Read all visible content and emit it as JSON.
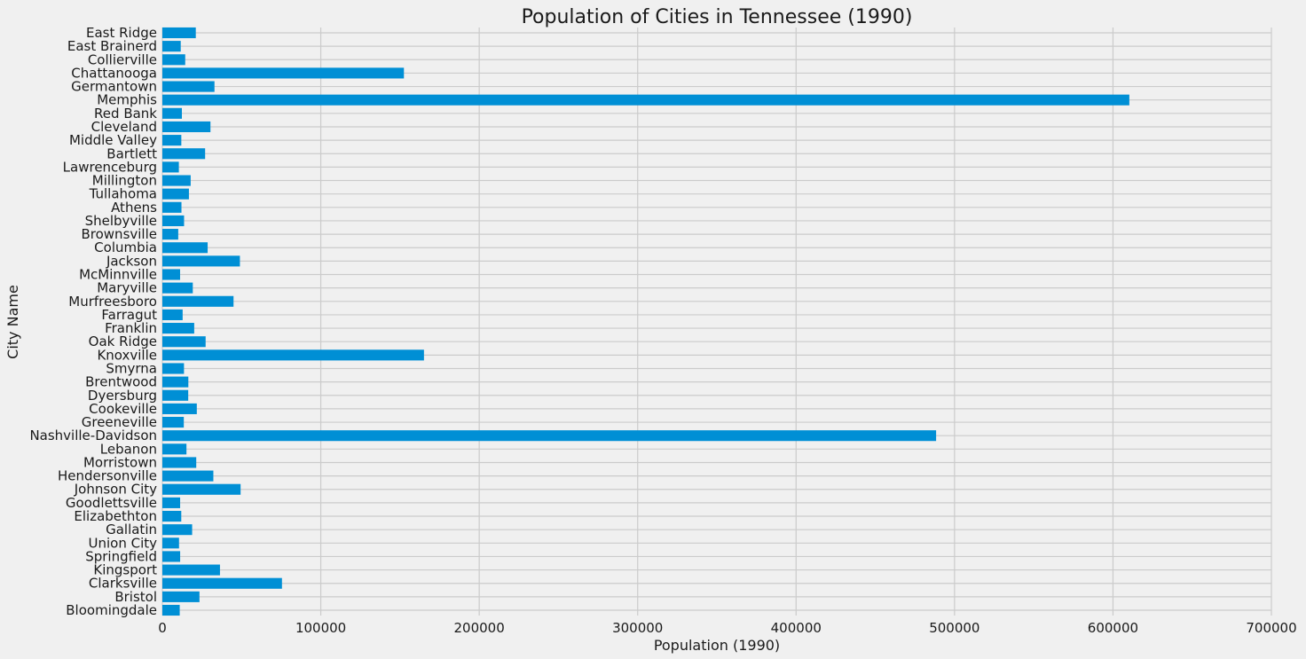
{
  "chart_data": {
    "type": "bar",
    "orientation": "horizontal",
    "title": "Population of Cities in Tennessee (1990)",
    "xlabel": "Population (1990)",
    "ylabel": "City Name",
    "xlim": [
      0,
      700000
    ],
    "xticks": [
      "0",
      "100000",
      "200000",
      "300000",
      "400000",
      "500000",
      "600000",
      "700000"
    ],
    "grid": true,
    "bar_color": "#008fd5",
    "background": "#f0f0f0",
    "categories": [
      "East Ridge",
      "East Brainerd",
      "Collierville",
      "Chattanooga",
      "Germantown",
      "Memphis",
      "Red Bank",
      "Cleveland",
      "Middle Valley",
      "Bartlett",
      "Lawrenceburg",
      "Millington",
      "Tullahoma",
      "Athens",
      "Shelbyville",
      "Brownsville",
      "Columbia",
      "Jackson",
      "McMinnville",
      "Maryville",
      "Murfreesboro",
      "Farragut",
      "Franklin",
      "Oak Ridge",
      "Knoxville",
      "Smyrna",
      "Brentwood",
      "Dyersburg",
      "Cookeville",
      "Greeneville",
      "Nashville-Davidson",
      "Lebanon",
      "Morristown",
      "Hendersonville",
      "Johnson City",
      "Goodlettsville",
      "Elizabethton",
      "Gallatin",
      "Union City",
      "Springfield",
      "Kingsport",
      "Clarksville",
      "Bristol",
      "Bloomingdale"
    ],
    "values": [
      21101,
      11594,
      14427,
      152466,
      32893,
      610337,
      12322,
      30354,
      11963,
      26989,
      10412,
      17866,
      16761,
      12054,
      13701,
      10019,
      28583,
      48949,
      11194,
      19208,
      44922,
      12800,
      20098,
      27310,
      165121,
      13647,
      16392,
      16317,
      21744,
      13532,
      488374,
      15208,
      21385,
      32188,
      49381,
      11219,
      11931,
      18794,
      10513,
      11227,
      36365,
      75494,
      23421,
      10953
    ]
  }
}
